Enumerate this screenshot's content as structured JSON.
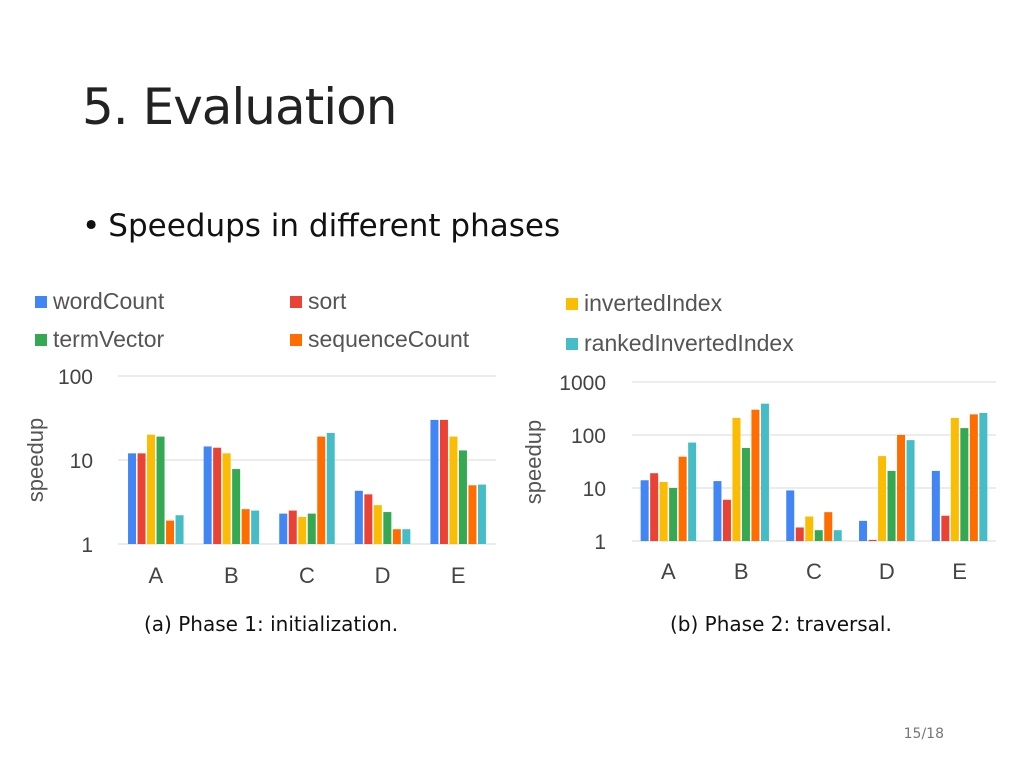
{
  "slide": {
    "title": "5. Evaluation",
    "bullet": "Speedups in different phases",
    "bullet_marker": "•",
    "page": "15/18"
  },
  "legend": [
    {
      "name": "wordCount",
      "color": "#4285F4"
    },
    {
      "name": "sort",
      "color": "#EA4335"
    },
    {
      "name": "invertedIndex",
      "color": "#FBBC04"
    },
    {
      "name": "termVector",
      "color": "#34A853"
    },
    {
      "name": "sequenceCount",
      "color": "#FF6D01"
    },
    {
      "name": "rankedInvertedIndex",
      "color": "#46BDC6"
    }
  ],
  "chart_data": [
    {
      "type": "bar",
      "caption": "(a) Phase 1: initialization.",
      "categories": [
        "A",
        "B",
        "C",
        "D",
        "E"
      ],
      "ylabel": "speedup",
      "yscale": "log",
      "ylim": [
        1,
        100
      ],
      "yticks": [
        "1",
        "10",
        "100"
      ],
      "grid": true,
      "series": [
        {
          "name": "wordCount",
          "values": [
            12,
            14.5,
            2.3,
            4.3,
            30
          ]
        },
        {
          "name": "sort",
          "values": [
            12,
            14,
            2.5,
            3.9,
            30
          ]
        },
        {
          "name": "invertedIndex",
          "values": [
            20,
            12,
            2.1,
            2.9,
            19
          ]
        },
        {
          "name": "termVector",
          "values": [
            19,
            7.8,
            2.3,
            2.4,
            13
          ]
        },
        {
          "name": "sequenceCount",
          "values": [
            1.9,
            2.6,
            19,
            1.5,
            5
          ]
        },
        {
          "name": "rankedInvertedIndex",
          "values": [
            2.2,
            2.5,
            21,
            1.5,
            5.1
          ]
        }
      ]
    },
    {
      "type": "bar",
      "caption": "(b) Phase 2: traversal.",
      "categories": [
        "A",
        "B",
        "C",
        "D",
        "E"
      ],
      "ylabel": "speedup",
      "yscale": "log",
      "ylim": [
        1,
        1000
      ],
      "yticks": [
        "1",
        "10",
        "100",
        "1000"
      ],
      "grid": true,
      "series": [
        {
          "name": "wordCount",
          "values": [
            14,
            13.5,
            9,
            2.4,
            21
          ]
        },
        {
          "name": "sort",
          "values": [
            19,
            6,
            1.8,
            1.05,
            3
          ]
        },
        {
          "name": "invertedIndex",
          "values": [
            13,
            210,
            2.9,
            40,
            210
          ]
        },
        {
          "name": "termVector",
          "values": [
            10,
            57,
            1.6,
            21,
            135
          ]
        },
        {
          "name": "sequenceCount",
          "values": [
            39,
            300,
            3.5,
            100,
            245
          ]
        },
        {
          "name": "rankedInvertedIndex",
          "values": [
            72,
            390,
            1.6,
            80,
            260
          ]
        }
      ]
    }
  ]
}
